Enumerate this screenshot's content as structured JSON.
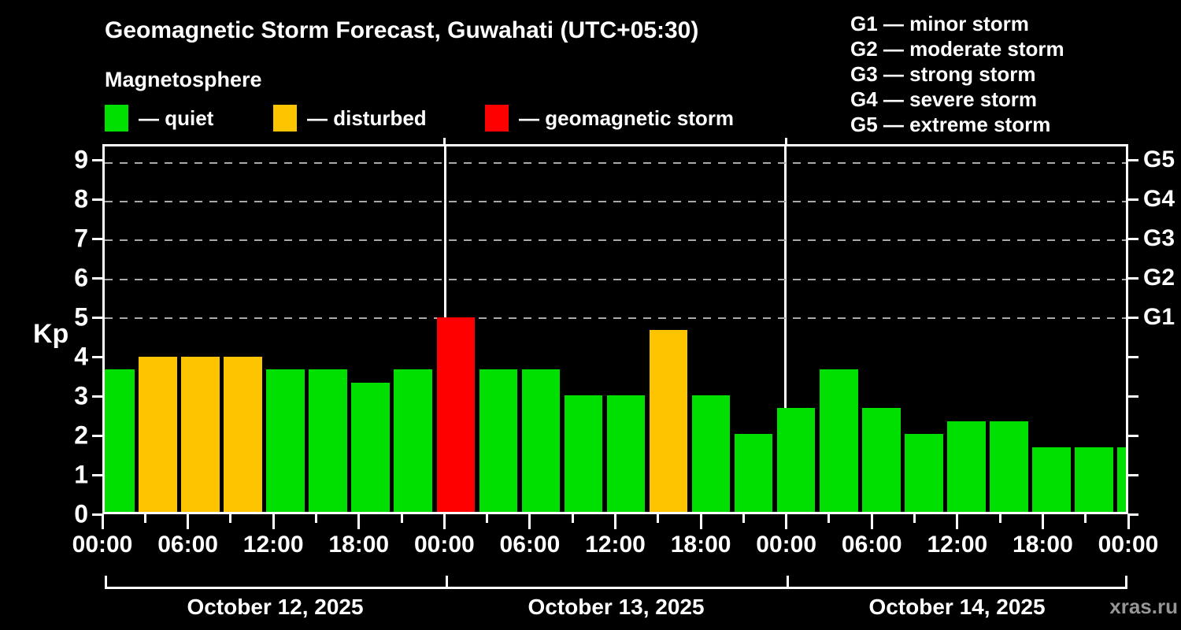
{
  "title": "Geomagnetic Storm Forecast, Guwahati (UTC+05:30)",
  "subtitle": "Magnetosphere",
  "legend": [
    {
      "key": "quiet",
      "label": "— quiet",
      "color": "#00e000"
    },
    {
      "key": "disturbed",
      "label": "— disturbed",
      "color": "#ffc400"
    },
    {
      "key": "storm",
      "label": "— geomagnetic storm",
      "color": "#ff0000"
    }
  ],
  "g_scale_legend": [
    "G1 — minor storm",
    "G2 — moderate storm",
    "G3 — strong storm",
    "G4 — severe storm",
    "G5 — extreme storm"
  ],
  "watermark": "xras.ru",
  "chart_data": {
    "type": "bar",
    "title": "Geomagnetic Storm Forecast, Guwahati (UTC+05:30)",
    "ylabel": "Kp",
    "ylim": [
      0,
      9.4
    ],
    "yticks": [
      0,
      1,
      2,
      3,
      4,
      5,
      6,
      7,
      8,
      9
    ],
    "gridlines_kp": [
      5,
      6,
      7,
      8,
      9
    ],
    "grid_style": "dashed horizontal lines at Kp 5–9 only",
    "right_axis": [
      {
        "kp": 5,
        "label": "G1"
      },
      {
        "kp": 6,
        "label": "G2"
      },
      {
        "kp": 7,
        "label": "G3"
      },
      {
        "kp": 8,
        "label": "G4"
      },
      {
        "kp": 9,
        "label": "G5"
      }
    ],
    "x_hours_total": 72,
    "x_minor_tick_every_hours": 3,
    "x_major_tick_every_hours": 6,
    "x_tick_labels": [
      "00:00",
      "06:00",
      "12:00",
      "18:00",
      "00:00",
      "06:00",
      "12:00",
      "18:00",
      "00:00",
      "06:00",
      "12:00",
      "18:00",
      "00:00"
    ],
    "bar_slot_hours": 3,
    "color_rules": {
      "quiet_kp_below": 4,
      "disturbed_kp_below": 5,
      "storm_kp_at_or_above": 5
    },
    "colors": {
      "quiet": "#00e000",
      "disturbed": "#ffc400",
      "storm": "#ff0000",
      "gridline": "#aaaaaa",
      "axis": "#ffffff",
      "day_divider": "#ffffff",
      "background": "#000000",
      "text": "#ffffff",
      "watermark_text": "#969696"
    },
    "days": [
      {
        "date": "October 12, 2025",
        "times": [
          "00:00",
          "03:00",
          "06:00",
          "09:00",
          "12:00",
          "15:00",
          "18:00",
          "21:00"
        ],
        "kp_values": [
          3.67,
          4,
          4,
          4,
          3.67,
          3.67,
          3.33,
          3.67
        ]
      },
      {
        "date": "October 13, 2025",
        "times": [
          "00:00",
          "03:00",
          "06:00",
          "09:00",
          "12:00",
          "15:00",
          "18:00",
          "21:00"
        ],
        "kp_values": [
          5,
          3.67,
          3.67,
          3,
          3,
          4.67,
          3,
          2
        ]
      },
      {
        "date": "October 14, 2025",
        "times": [
          "00:00",
          "03:00",
          "06:00",
          "09:00",
          "12:00",
          "15:00",
          "18:00",
          "21:00"
        ],
        "kp_values": [
          2.67,
          3.67,
          2.67,
          2,
          2.33,
          2.33,
          1.67,
          1.67
        ]
      }
    ],
    "clipped_next_bar_kp": 1.67,
    "legend_position": "top-left"
  }
}
